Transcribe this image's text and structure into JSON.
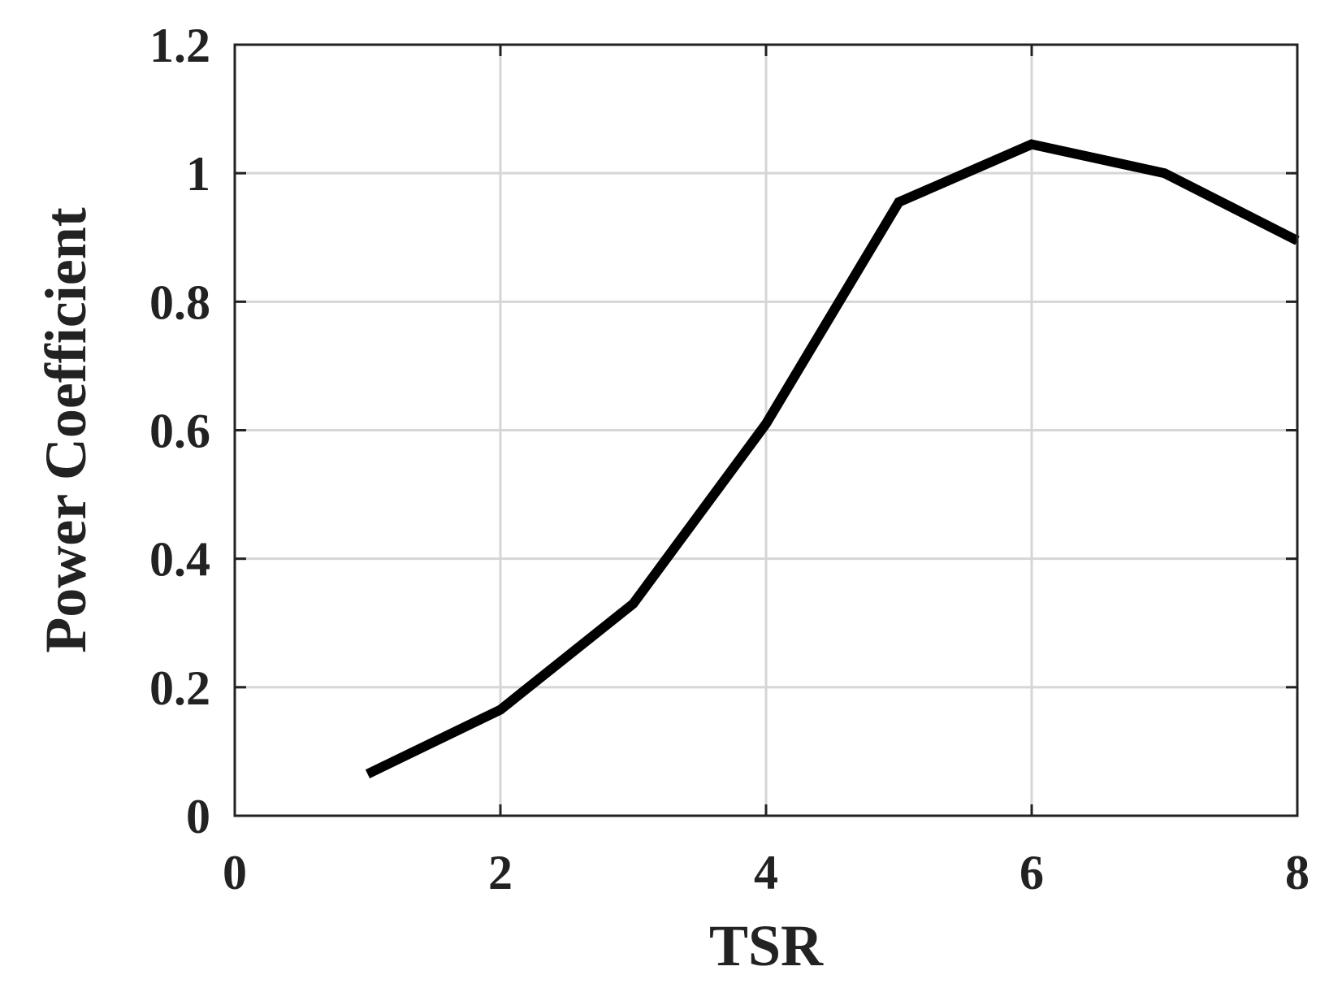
{
  "chart_data": {
    "type": "line",
    "title": "",
    "xlabel": "TSR",
    "ylabel": "Power Coefficient",
    "xlim": [
      0,
      8
    ],
    "ylim": [
      0,
      1.2
    ],
    "xticks": [
      0,
      2,
      4,
      6,
      8
    ],
    "xtick_labels": [
      "0",
      "2",
      "4",
      "6",
      "8"
    ],
    "yticks": [
      0,
      0.2,
      0.4,
      0.6,
      0.8,
      1.0,
      1.2
    ],
    "ytick_labels": [
      "0",
      "0.2",
      "0.4",
      "0.6",
      "0.8",
      "1",
      "1.2"
    ],
    "grid": true,
    "series": [
      {
        "x": [
          1,
          2,
          3,
          4,
          5,
          6,
          7,
          8
        ],
        "y": [
          0.065,
          0.165,
          0.33,
          0.61,
          0.955,
          1.045,
          1.0,
          0.895
        ],
        "color": "#000000"
      }
    ]
  }
}
